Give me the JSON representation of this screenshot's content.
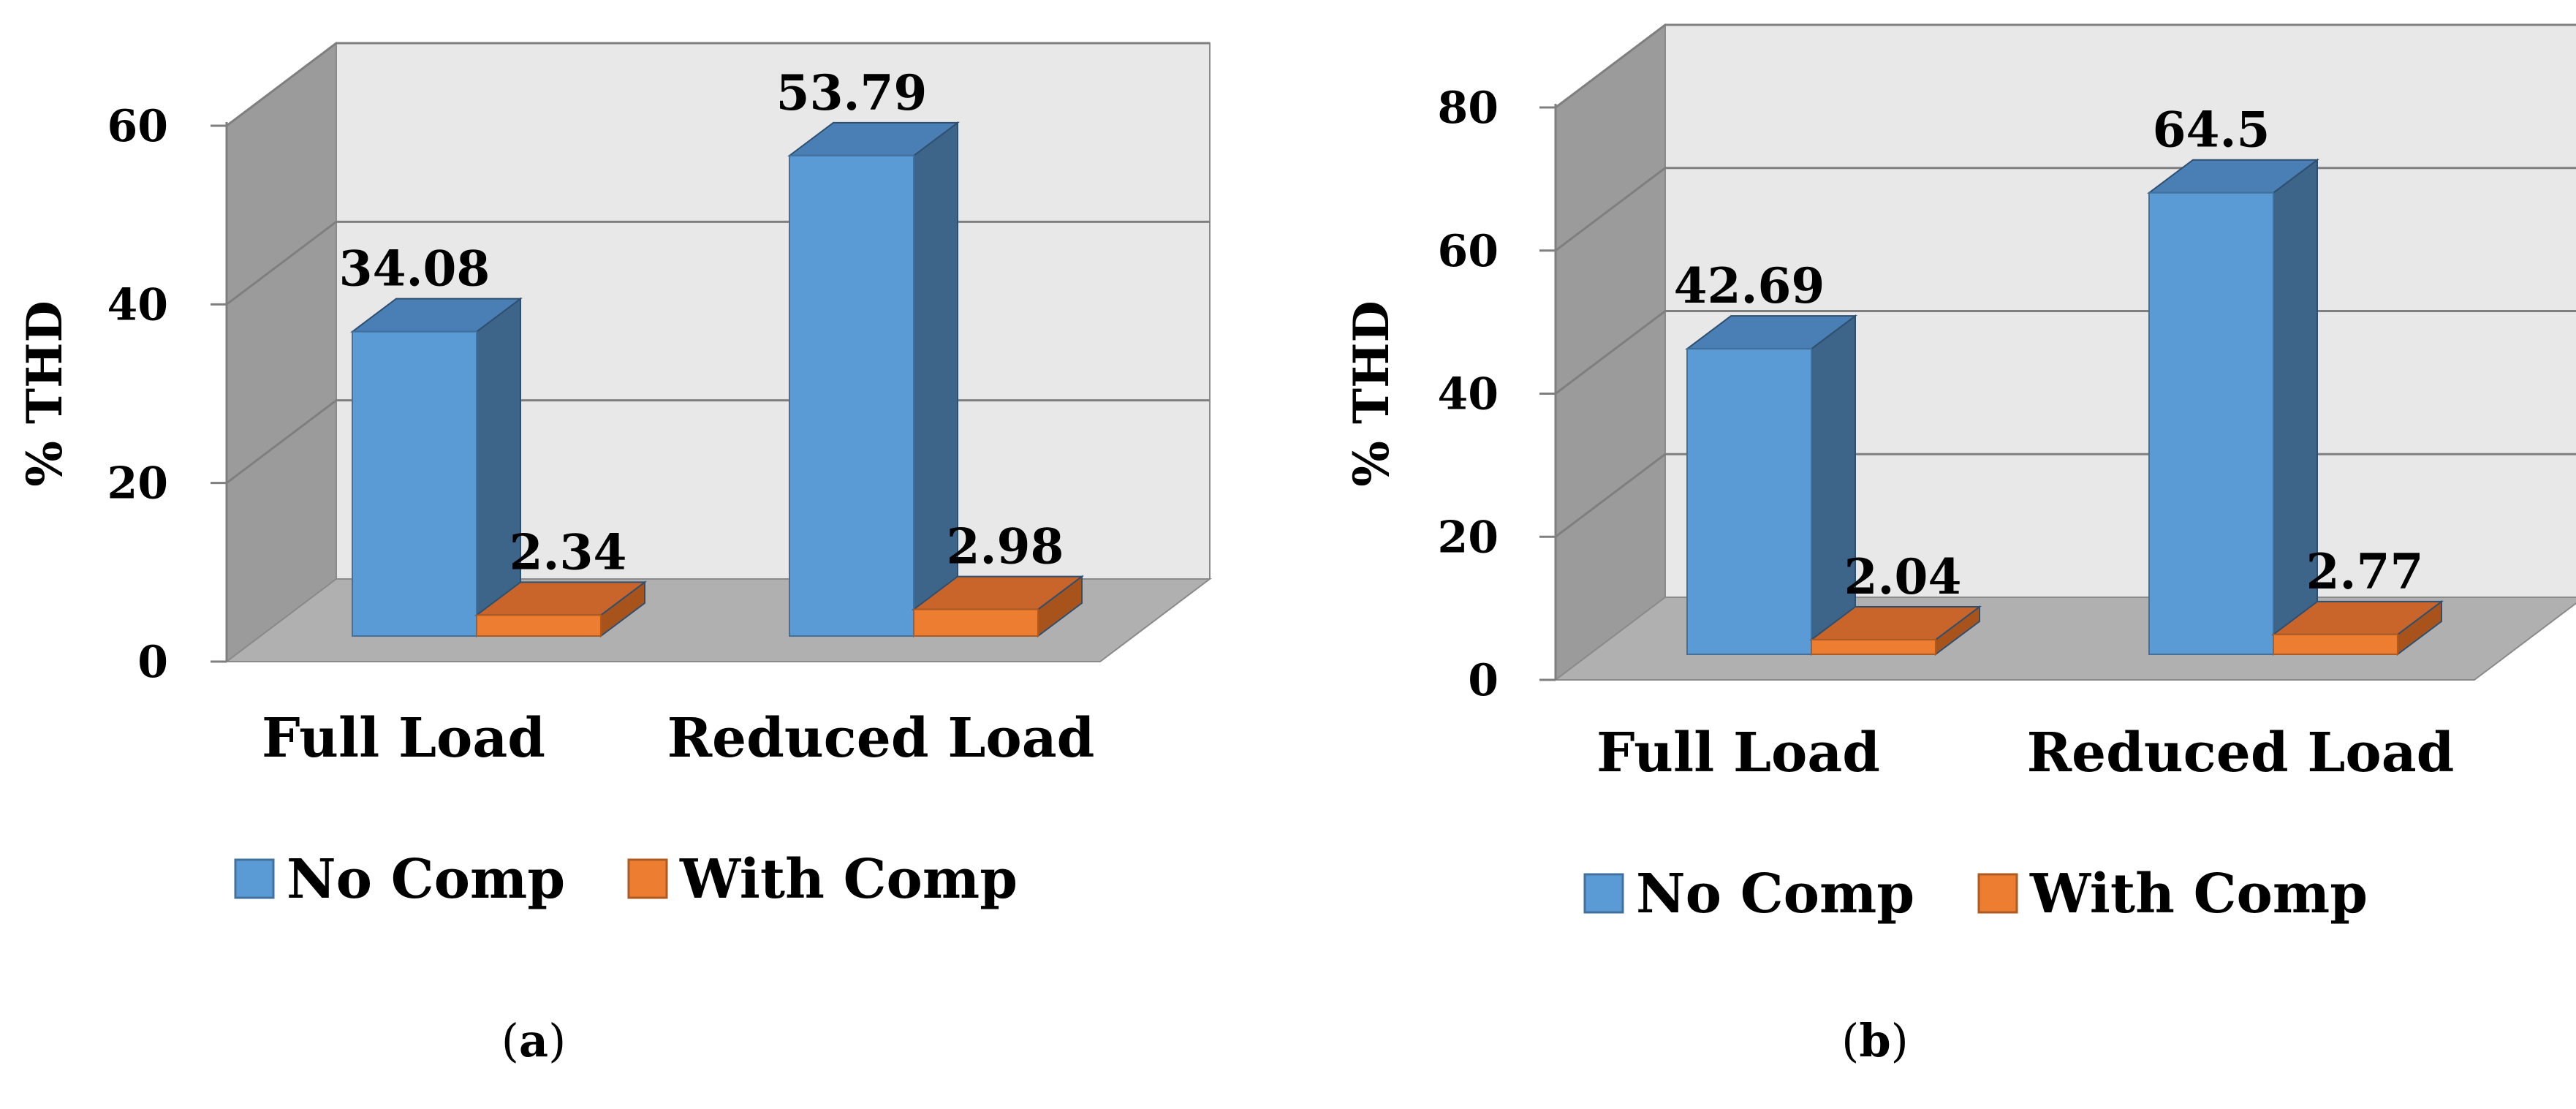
{
  "chart_data": [
    {
      "type": "bar",
      "caption_letter": "a",
      "categories": [
        "Full Load",
        "Reduced Load"
      ],
      "series": [
        {
          "name": "No Comp",
          "values": [
            34.08,
            53.79
          ]
        },
        {
          "name": "With Comp",
          "values": [
            2.34,
            2.98
          ]
        }
      ],
      "data_labels": [
        [
          "34.08",
          "53.79"
        ],
        [
          "2.34",
          "2.98"
        ]
      ],
      "yticks": [
        "0",
        "20",
        "40",
        "60"
      ],
      "ylabel": "% THD",
      "ylim": [
        0,
        60
      ],
      "grid": true,
      "legend": "bottom"
    },
    {
      "type": "bar",
      "caption_letter": "b",
      "categories": [
        "Full Load",
        "Reduced Load"
      ],
      "series": [
        {
          "name": "No Comp",
          "values": [
            42.69,
            64.5
          ]
        },
        {
          "name": "With Comp",
          "values": [
            2.04,
            2.77
          ]
        }
      ],
      "data_labels": [
        [
          "42.69",
          "64.5"
        ],
        [
          "2.04",
          "2.77"
        ]
      ],
      "yticks": [
        "0",
        "20",
        "40",
        "60",
        "80"
      ],
      "ylabel": "% THD",
      "ylim": [
        0,
        80
      ],
      "grid": true,
      "legend": "bottom"
    }
  ],
  "colors": {
    "no_comp_front": "#5b9bd5",
    "no_comp_side": "#3d6489",
    "no_comp_top": "#4a7fb5",
    "with_comp_front": "#ed7d31",
    "with_comp_side": "#a8531c",
    "with_comp_top": "#c9652a",
    "wall": "#e8e8e8",
    "side_wall": "#9b9b9b",
    "floor": "#b0b0b0"
  }
}
